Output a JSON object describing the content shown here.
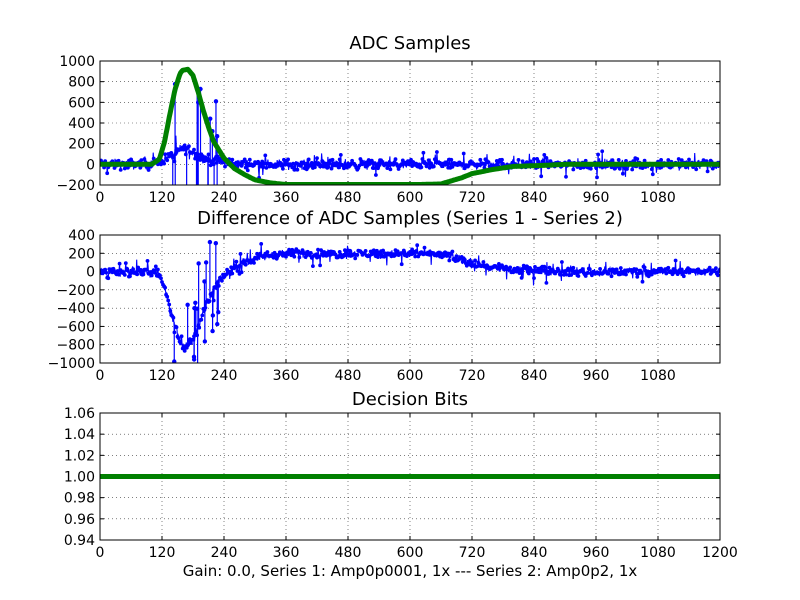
{
  "figure": {
    "xlabel": "Gain: 0.0, Series 1: Amp0p0001, 1x --- Series 2: Amp0p2, 1x"
  },
  "colors": {
    "blue": "#0000ff",
    "green": "#008000",
    "axis": "#000000"
  },
  "chart_data": [
    {
      "type": "line",
      "title": "ADC Samples",
      "xlim": [
        0,
        1200
      ],
      "ylim": [
        -200,
        1000
      ],
      "xticks": [
        "0",
        "120",
        "240",
        "360",
        "480",
        "600",
        "720",
        "840",
        "960",
        "1080"
      ],
      "yticks": [
        "−200",
        "0",
        "200",
        "400",
        "600",
        "800",
        "1000"
      ],
      "grid": true,
      "series": [
        {
          "name": "Series 1",
          "color": "#0000ff",
          "style": "noisy-stem",
          "x": [
            0,
            100,
            110,
            130,
            150,
            160,
            170,
            180,
            190,
            200,
            220,
            260,
            300,
            400,
            500,
            600,
            700,
            800,
            900,
            1000,
            1100,
            1200
          ],
          "values": [
            0,
            0,
            20,
            60,
            120,
            160,
            150,
            120,
            90,
            60,
            30,
            10,
            0,
            0,
            0,
            0,
            0,
            0,
            0,
            0,
            0,
            0
          ],
          "noise": 40
        },
        {
          "name": "Series 2",
          "color": "#008000",
          "style": "dense",
          "x": [
            0,
            100,
            115,
            125,
            135,
            145,
            155,
            160,
            170,
            180,
            190,
            200,
            210,
            220,
            240,
            260,
            280,
            300,
            330,
            360,
            400,
            480,
            560,
            620,
            660,
            700,
            720,
            760,
            800,
            860,
            900,
            1000,
            1200
          ],
          "values": [
            0,
            0,
            50,
            220,
            480,
            720,
            880,
            910,
            920,
            860,
            700,
            520,
            360,
            220,
            60,
            -40,
            -100,
            -150,
            -180,
            -195,
            -195,
            -195,
            -195,
            -195,
            -190,
            -130,
            -90,
            -50,
            -20,
            -10,
            0,
            0,
            0
          ]
        }
      ]
    },
    {
      "type": "line",
      "title": "Difference of ADC Samples (Series 1 - Series 2)",
      "xlim": [
        0,
        1200
      ],
      "ylim": [
        -1000,
        400
      ],
      "xticks": [
        "0",
        "120",
        "240",
        "360",
        "480",
        "600",
        "720",
        "840",
        "960",
        "1080"
      ],
      "yticks": [
        "−1000",
        "−800",
        "−600",
        "−400",
        "−200",
        "0",
        "200",
        "400"
      ],
      "grid": true,
      "series": [
        {
          "name": "Series 1 - Series 2",
          "color": "#0000ff",
          "style": "noisy-stem",
          "x": [
            0,
            100,
            115,
            125,
            135,
            145,
            155,
            160,
            170,
            180,
            190,
            200,
            210,
            220,
            240,
            260,
            280,
            300,
            330,
            360,
            400,
            480,
            560,
            620,
            660,
            700,
            720,
            760,
            800,
            860,
            900,
            1000,
            1200
          ],
          "values": [
            0,
            0,
            -40,
            -180,
            -380,
            -580,
            -760,
            -820,
            -800,
            -760,
            -600,
            -440,
            -320,
            -200,
            -40,
            40,
            100,
            150,
            180,
            195,
            195,
            195,
            195,
            195,
            190,
            130,
            90,
            50,
            20,
            10,
            0,
            0,
            0
          ],
          "noise": 40
        }
      ]
    },
    {
      "type": "line",
      "title": "Decision Bits",
      "xlim": [
        0,
        1200
      ],
      "ylim": [
        0.94,
        1.06
      ],
      "xticks": [
        "0",
        "120",
        "240",
        "360",
        "480",
        "600",
        "720",
        "840",
        "960",
        "1080",
        "1200"
      ],
      "yticks": [
        "0.94",
        "0.96",
        "0.98",
        "1.00",
        "1.02",
        "1.04",
        "1.06"
      ],
      "grid": true,
      "series": [
        {
          "name": "Decision",
          "color": "#008000",
          "style": "dense",
          "x": [
            0,
            1200
          ],
          "values": [
            1.0,
            1.0
          ]
        }
      ]
    }
  ]
}
